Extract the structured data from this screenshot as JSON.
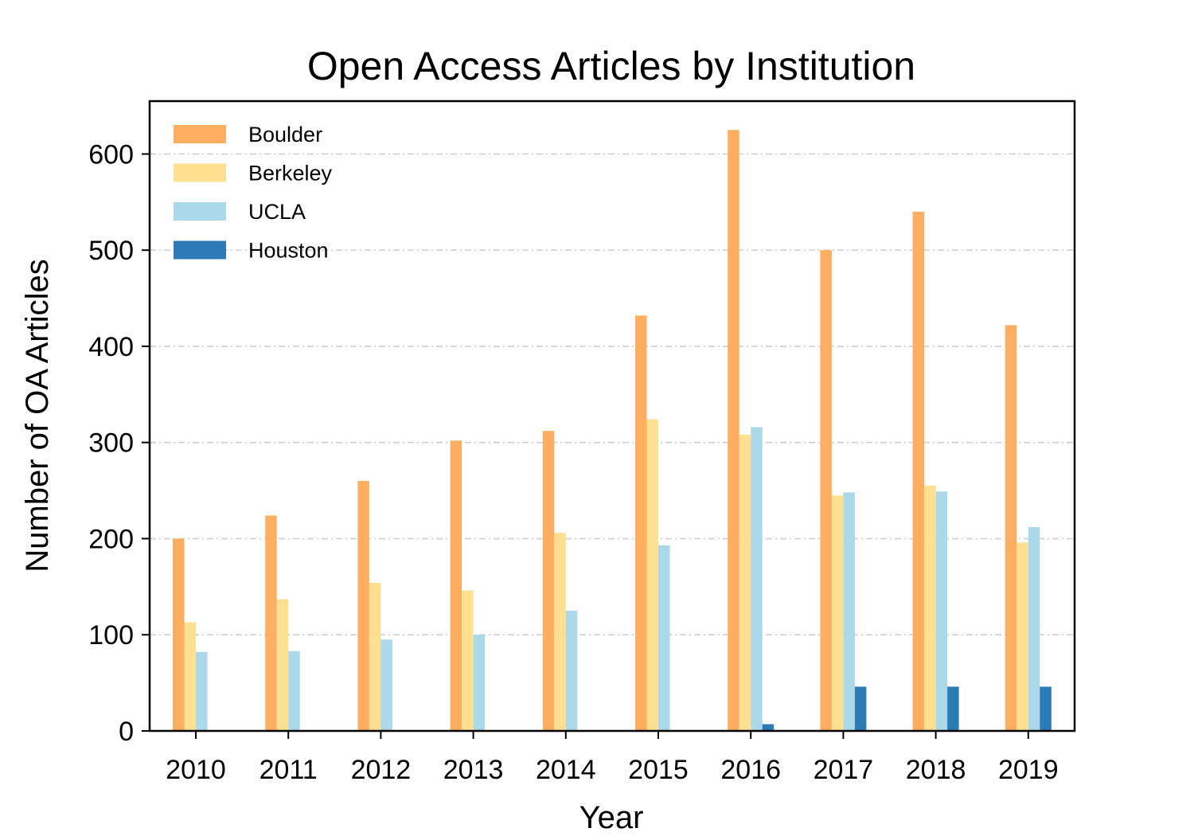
{
  "chart_data": {
    "type": "bar",
    "title": "Open Access Articles by Institution",
    "xlabel": "Year",
    "ylabel": "Number of OA Articles",
    "ylim": [
      0,
      655
    ],
    "yticks": [
      0,
      100,
      200,
      300,
      400,
      500,
      600
    ],
    "grid": "horizontal dash-dot",
    "legend_position": "top-left",
    "categories": [
      "2010",
      "2011",
      "2012",
      "2013",
      "2014",
      "2015",
      "2016",
      "2017",
      "2018",
      "2019"
    ],
    "series": [
      {
        "name": "Boulder",
        "color": "#fdae61",
        "values": [
          200,
          224,
          260,
          302,
          312,
          432,
          625,
          500,
          540,
          422
        ]
      },
      {
        "name": "Berkeley",
        "color": "#fee090",
        "values": [
          113,
          137,
          154,
          146,
          206,
          324,
          308,
          245,
          255,
          196
        ]
      },
      {
        "name": "UCLA",
        "color": "#abd9e9",
        "values": [
          82,
          83,
          95,
          100,
          125,
          193,
          316,
          248,
          249,
          212
        ]
      },
      {
        "name": "Houston",
        "color": "#2c7bb6",
        "values": [
          0,
          0,
          0,
          0,
          0,
          0,
          7,
          46,
          46,
          46
        ]
      }
    ]
  }
}
